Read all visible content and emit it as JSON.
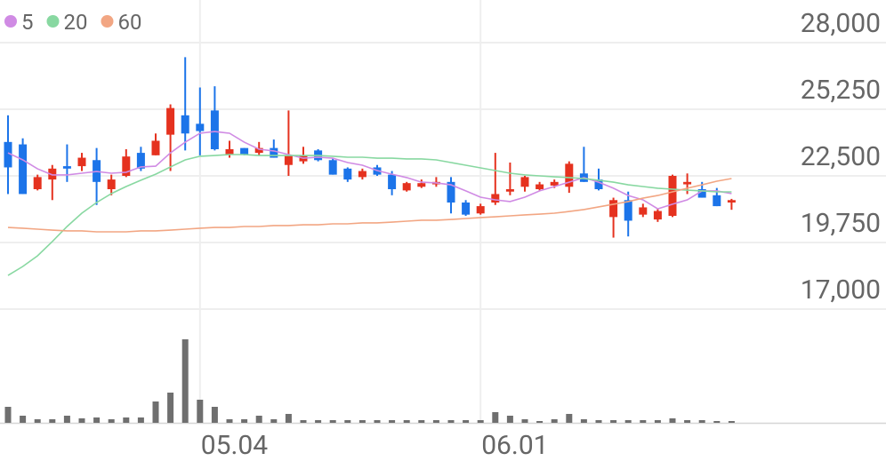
{
  "chart_data": {
    "type": "candlestick",
    "categories": [
      null,
      null,
      null,
      null,
      null,
      null,
      null,
      null,
      null,
      null,
      null,
      null,
      null,
      "05.04",
      null,
      null,
      null,
      null,
      null,
      null,
      null,
      null,
      null,
      null,
      null,
      null,
      null,
      null,
      null,
      null,
      null,
      null,
      "06.01",
      null,
      null,
      null,
      null,
      null,
      null,
      null,
      null,
      null,
      null,
      null,
      null,
      null,
      null,
      null,
      null,
      null
    ],
    "candles": {
      "up_color": "#e5321f",
      "down_color": "#1c74e9",
      "open": [
        23900,
        23800,
        21950,
        22350,
        22900,
        22900,
        23150,
        21950,
        22500,
        23450,
        23350,
        24200,
        25000,
        24650,
        25200,
        23400,
        23650,
        23450,
        23650,
        22950,
        23100,
        23550,
        23150,
        22800,
        22450,
        22850,
        22550,
        21900,
        22050,
        22150,
        22250,
        21400,
        20950,
        21400,
        21850,
        22050,
        21950,
        22100,
        22050,
        22600,
        22350,
        20800,
        21500,
        20900,
        20700,
        20850,
        22150,
        21950,
        21700,
        21400
      ],
      "high": [
        25000,
        24050,
        22550,
        22950,
        23800,
        23450,
        23650,
        22550,
        23600,
        23700,
        24250,
        25450,
        27400,
        26150,
        26200,
        23950,
        23650,
        23900,
        24000,
        25200,
        23700,
        23600,
        23250,
        22850,
        22800,
        22950,
        22700,
        22250,
        22350,
        22450,
        22450,
        21500,
        21350,
        23450,
        23050,
        22500,
        22250,
        22350,
        23100,
        23700,
        22800,
        21600,
        21850,
        21350,
        21150,
        22550,
        22600,
        22250,
        22000,
        21550
      ],
      "low": [
        21750,
        21750,
        21900,
        21500,
        22250,
        22700,
        21300,
        21700,
        22450,
        22700,
        23350,
        22700,
        23550,
        23350,
        23550,
        23250,
        23350,
        23350,
        23250,
        22500,
        23000,
        23100,
        22550,
        22250,
        22350,
        22500,
        21700,
        21850,
        22000,
        22050,
        20950,
        20850,
        20900,
        21300,
        21700,
        21850,
        21900,
        22000,
        21800,
        22250,
        21900,
        19950,
        20000,
        20800,
        20600,
        20800,
        21750,
        21600,
        21250,
        21100
      ],
      "close": [
        22850,
        21750,
        22450,
        22800,
        22800,
        23250,
        22250,
        22350,
        23300,
        22800,
        23950,
        25300,
        24250,
        24350,
        23600,
        23600,
        23400,
        23650,
        23250,
        23350,
        23350,
        23150,
        22550,
        22350,
        22700,
        22550,
        21950,
        22200,
        22200,
        22250,
        21400,
        20900,
        21250,
        21750,
        21950,
        22450,
        22150,
        22250,
        23000,
        22250,
        21950,
        21500,
        20650,
        21200,
        21050,
        22500,
        22250,
        21600,
        21250,
        21500
      ]
    },
    "series": [
      {
        "name": "5",
        "color": "#d08be4",
        "values": [
          23450,
          23160,
          22790,
          22540,
          22540,
          22610,
          22680,
          22610,
          22650,
          22870,
          22900,
          23450,
          23890,
          24260,
          24330,
          24260,
          23890,
          23600,
          23530,
          23380,
          23230,
          23270,
          23230,
          23050,
          22940,
          22720,
          22570,
          22430,
          22240,
          22210,
          22130,
          21880,
          21620,
          21510,
          21440,
          21620,
          21880,
          22060,
          22240,
          22430,
          22240,
          21990,
          21690,
          21510,
          21140,
          21330,
          21510,
          21880,
          21880,
          21770
        ]
      },
      {
        "name": "20",
        "color": "#88d8a1",
        "values": [
          18390,
          18760,
          19200,
          19790,
          20410,
          20960,
          21400,
          21770,
          22060,
          22320,
          22570,
          22870,
          23160,
          23310,
          23340,
          23380,
          23380,
          23340,
          23340,
          23340,
          23340,
          23340,
          23310,
          23270,
          23270,
          23230,
          23230,
          23200,
          23200,
          23160,
          23050,
          22940,
          22830,
          22720,
          22610,
          22540,
          22500,
          22460,
          22430,
          22390,
          22320,
          22240,
          22130,
          22060,
          21990,
          21950,
          21910,
          21880,
          21840,
          21840
        ]
      },
      {
        "name": "60",
        "color": "#f2a683",
        "values": [
          20370,
          20340,
          20300,
          20260,
          20230,
          20230,
          20190,
          20190,
          20190,
          20230,
          20230,
          20260,
          20300,
          20340,
          20370,
          20370,
          20410,
          20410,
          20450,
          20450,
          20480,
          20480,
          20520,
          20520,
          20560,
          20560,
          20590,
          20630,
          20670,
          20670,
          20700,
          20740,
          20780,
          20810,
          20850,
          20890,
          20920,
          20960,
          21030,
          21110,
          21220,
          21330,
          21440,
          21580,
          21690,
          21840,
          21990,
          22130,
          22280,
          22390
        ]
      }
    ],
    "volume": {
      "color": "#6f6f6f",
      "values": [
        18,
        8,
        4,
        4,
        8,
        5,
        6,
        4,
        6,
        6,
        24,
        34,
        94,
        26,
        18,
        4,
        4,
        8,
        4,
        10,
        3,
        3,
        3,
        3,
        3,
        3,
        3,
        3,
        3,
        3,
        3,
        3,
        3,
        12,
        8,
        4,
        2,
        4,
        10,
        4,
        3,
        3,
        3,
        3,
        3,
        5,
        3,
        3,
        2,
        2
      ]
    },
    "ylim": [
      17000,
      28000
    ],
    "yticks": [
      {
        "value": 28000,
        "label": "28,000"
      },
      {
        "value": 25250,
        "label": "25,250"
      },
      {
        "value": 22500,
        "label": "22,500"
      },
      {
        "value": 19750,
        "label": "19,750"
      },
      {
        "value": 17000,
        "label": "17,000"
      }
    ],
    "grid": true
  }
}
